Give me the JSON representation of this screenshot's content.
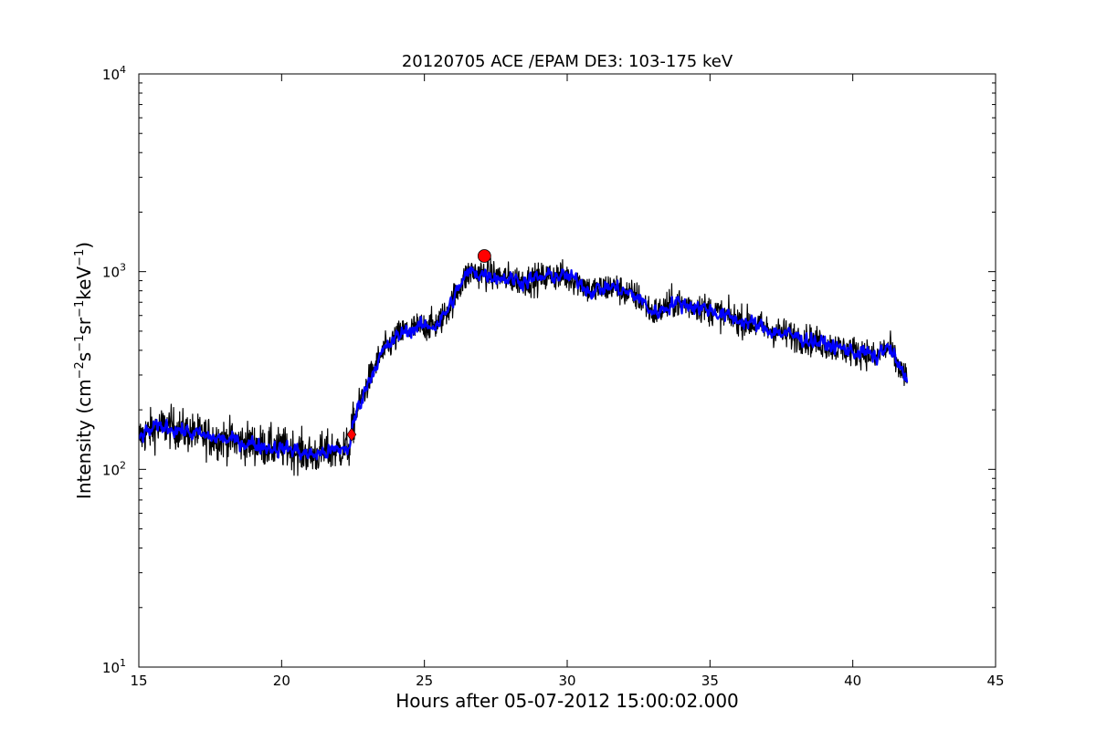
{
  "chart_data": {
    "type": "line",
    "title": "20120705 ACE /EPAM DE3: 103-175 keV",
    "xlabel": "Hours after 05-07-2012 15:00:02.000",
    "ylabel_parts": [
      "Intensity (cm",
      "−2",
      "s",
      "−1",
      "sr",
      "−1",
      "keV",
      "−1",
      ")"
    ],
    "xlim": [
      15,
      45
    ],
    "ylim": [
      10,
      10000
    ],
    "yscale": "log",
    "grid": false,
    "x_ticks": [
      "15",
      "20",
      "25",
      "30",
      "35",
      "40",
      "45"
    ],
    "y_ticks": [
      {
        "value": 10,
        "base": "10",
        "exp": "1"
      },
      {
        "value": 100,
        "base": "10",
        "exp": "2"
      },
      {
        "value": 1000,
        "base": "10",
        "exp": "3"
      },
      {
        "value": 10000,
        "base": "10",
        "exp": "4"
      }
    ],
    "series": [
      {
        "color": "#000000",
        "style": "raw",
        "x": [
          15.0,
          15.5,
          16.0,
          16.5,
          17.0,
          17.5,
          18.0,
          18.5,
          19.0,
          19.5,
          20.0,
          20.5,
          21.0,
          21.5,
          22.0,
          22.4,
          22.5,
          22.7,
          23.0,
          23.3,
          23.6,
          24.0,
          24.3,
          24.7,
          25.0,
          25.4,
          25.7,
          26.0,
          26.3,
          26.6,
          27.0,
          27.5,
          28.0,
          28.5,
          29.0,
          29.5,
          30.0,
          30.5,
          30.8,
          31.2,
          31.6,
          32.0,
          32.5,
          33.0,
          33.3,
          33.7,
          34.0,
          34.5,
          35.0,
          35.5,
          36.0,
          36.5,
          37.0,
          37.5,
          38.0,
          38.5,
          39.0,
          39.5,
          40.0,
          40.5,
          40.8,
          41.0,
          41.3,
          41.6,
          41.9
        ],
        "y": [
          145,
          160,
          165,
          158,
          150,
          145,
          142,
          138,
          135,
          130,
          128,
          125,
          118,
          122,
          125,
          130,
          170,
          210,
          270,
          340,
          400,
          460,
          500,
          520,
          530,
          540,
          600,
          720,
          880,
          1000,
          980,
          950,
          920,
          900,
          920,
          960,
          940,
          880,
          800,
          820,
          840,
          790,
          740,
          620,
          640,
          700,
          690,
          670,
          640,
          600,
          570,
          545,
          510,
          490,
          470,
          450,
          430,
          410,
          395,
          390,
          360,
          400,
          410,
          330,
          280
        ]
      },
      {
        "color": "#0000ff",
        "style": "smoothed",
        "x": [
          15.0,
          15.5,
          16.0,
          16.5,
          17.0,
          17.5,
          18.0,
          18.5,
          19.0,
          19.5,
          20.0,
          20.5,
          21.0,
          21.5,
          22.0,
          22.4,
          22.5,
          22.7,
          23.0,
          23.3,
          23.6,
          24.0,
          24.3,
          24.7,
          25.0,
          25.4,
          25.7,
          26.0,
          26.3,
          26.6,
          27.0,
          27.5,
          28.0,
          28.5,
          29.0,
          29.5,
          30.0,
          30.5,
          30.8,
          31.2,
          31.6,
          32.0,
          32.5,
          33.0,
          33.3,
          33.7,
          34.0,
          34.5,
          35.0,
          35.5,
          36.0,
          36.5,
          37.0,
          37.5,
          38.0,
          38.5,
          39.0,
          39.5,
          40.0,
          40.5,
          40.8,
          41.0,
          41.3,
          41.6,
          41.9
        ],
        "y": [
          145,
          160,
          165,
          158,
          150,
          145,
          142,
          138,
          135,
          130,
          128,
          125,
          118,
          122,
          125,
          130,
          170,
          210,
          270,
          340,
          400,
          460,
          500,
          520,
          530,
          540,
          600,
          720,
          880,
          1000,
          980,
          950,
          920,
          900,
          920,
          960,
          940,
          880,
          800,
          820,
          840,
          790,
          740,
          620,
          640,
          700,
          690,
          670,
          640,
          600,
          570,
          545,
          510,
          490,
          470,
          450,
          430,
          410,
          395,
          390,
          360,
          400,
          410,
          330,
          280
        ]
      }
    ],
    "markers": [
      {
        "shape": "circle",
        "color": "#ff0000",
        "x": 27.1,
        "y": 1200
      },
      {
        "shape": "diamond",
        "color": "#ff0000",
        "x": 22.45,
        "y": 150
      }
    ]
  }
}
